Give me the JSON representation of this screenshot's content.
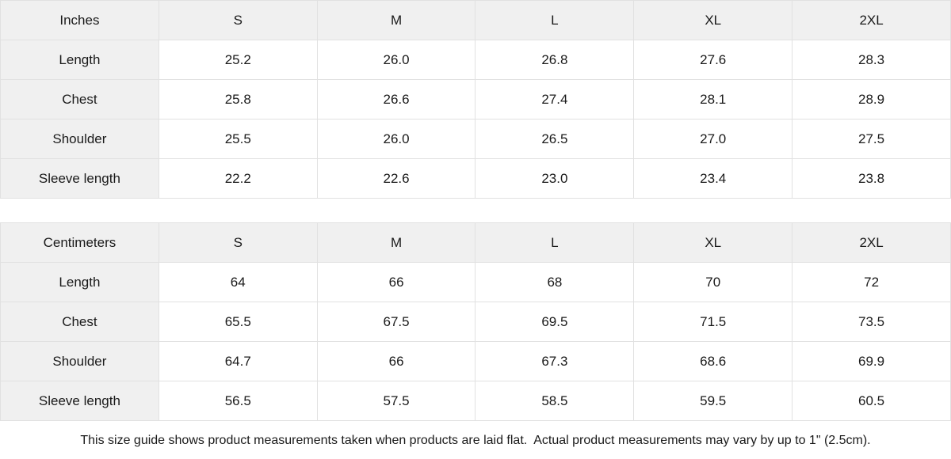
{
  "colors": {
    "page_bg": "#ffffff",
    "header_cell_bg": "#f0f0f0",
    "label_cell_bg": "#f0f0f0",
    "cell_border": "#e1e1e1",
    "text": "#1a1a1a"
  },
  "chart_data": [
    {
      "type": "table",
      "unit_header": "Inches",
      "size_columns": [
        "S",
        "M",
        "L",
        "XL",
        "2XL"
      ],
      "rows": [
        {
          "label": "Length",
          "values": [
            "25.2",
            "26.0",
            "26.8",
            "27.6",
            "28.3"
          ]
        },
        {
          "label": "Chest",
          "values": [
            "25.8",
            "26.6",
            "27.4",
            "28.1",
            "28.9"
          ]
        },
        {
          "label": "Shoulder",
          "values": [
            "25.5",
            "26.0",
            "26.5",
            "27.0",
            "27.5"
          ]
        },
        {
          "label": "Sleeve length",
          "values": [
            "22.2",
            "22.6",
            "23.0",
            "23.4",
            "23.8"
          ]
        }
      ]
    },
    {
      "type": "table",
      "unit_header": "Centimeters",
      "size_columns": [
        "S",
        "M",
        "L",
        "XL",
        "2XL"
      ],
      "rows": [
        {
          "label": "Length",
          "values": [
            "64",
            "66",
            "68",
            "70",
            "72"
          ]
        },
        {
          "label": "Chest",
          "values": [
            "65.5",
            "67.5",
            "69.5",
            "71.5",
            "73.5"
          ]
        },
        {
          "label": "Shoulder",
          "values": [
            "64.7",
            "66",
            "67.3",
            "68.6",
            "69.9"
          ]
        },
        {
          "label": "Sleeve length",
          "values": [
            "56.5",
            "57.5",
            "58.5",
            "59.5",
            "60.5"
          ]
        }
      ]
    }
  ],
  "footer": {
    "note": "This size guide shows product measurements taken when products are laid flat.  Actual product measurements may vary by up to 1\" (2.5cm)."
  }
}
